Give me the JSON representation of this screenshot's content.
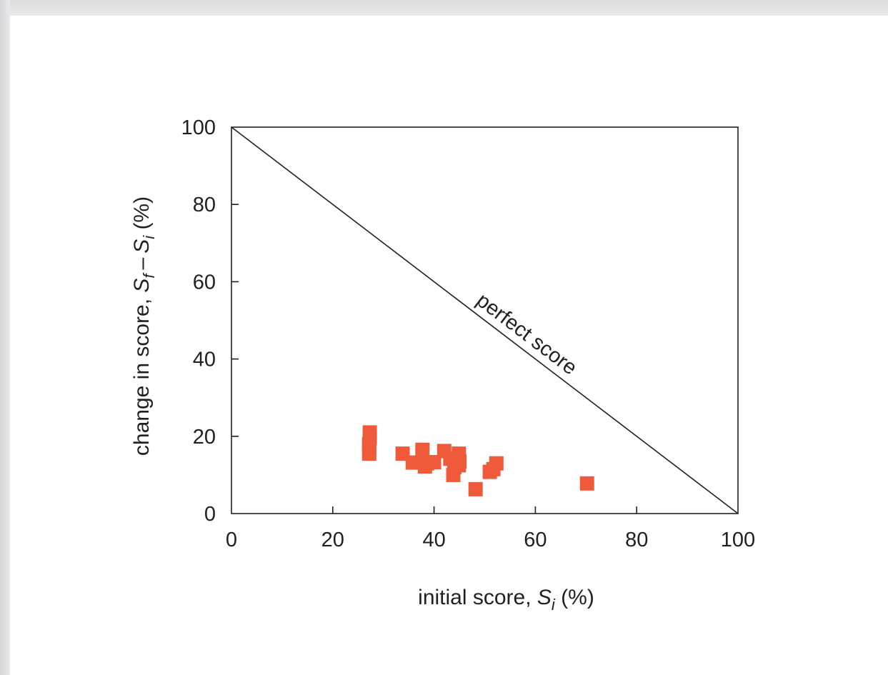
{
  "colors": {
    "marker": "#ef5a3a",
    "axis": "#231f20",
    "background": "#ffffff"
  },
  "chart_data": {
    "type": "scatter",
    "title": "",
    "xlabel": {
      "prefix": "initial score, ",
      "var": "S",
      "sub": "i",
      "suffix": " (%)"
    },
    "ylabel": {
      "prefix": "change in score, ",
      "var1": "S",
      "sub1": "f",
      "minus": " – ",
      "var2": "S",
      "sub2": "i",
      "suffix": " (%)"
    },
    "xlim": [
      0,
      100
    ],
    "ylim": [
      0,
      100
    ],
    "xticks": [
      "0",
      "20",
      "40",
      "60",
      "80",
      "100"
    ],
    "yticks": [
      "0",
      "20",
      "40",
      "60",
      "80",
      "100"
    ],
    "grid": false,
    "reference_line": {
      "label": "perfect score",
      "from": [
        0,
        100
      ],
      "to": [
        100,
        0
      ]
    },
    "series": [
      {
        "marker": "square",
        "points": [
          [
            27.3,
            21.0
          ],
          [
            27.3,
            19.5
          ],
          [
            27.2,
            18.0
          ],
          [
            27.2,
            17.0
          ],
          [
            27.2,
            15.5
          ],
          [
            33.8,
            15.5
          ],
          [
            35.8,
            13.2
          ],
          [
            37.7,
            16.5
          ],
          [
            38.2,
            12.2
          ],
          [
            38.6,
            13.0
          ],
          [
            40.0,
            13.3
          ],
          [
            42.0,
            16.2
          ],
          [
            43.2,
            14.2
          ],
          [
            44.0,
            12.0
          ],
          [
            43.8,
            10.0
          ],
          [
            44.9,
            15.5
          ],
          [
            45.0,
            13.5
          ],
          [
            44.9,
            12.5
          ],
          [
            48.2,
            6.3
          ],
          [
            51.0,
            10.8
          ],
          [
            51.7,
            11.5
          ],
          [
            52.3,
            13.0
          ],
          [
            70.2,
            7.8
          ]
        ]
      }
    ]
  }
}
